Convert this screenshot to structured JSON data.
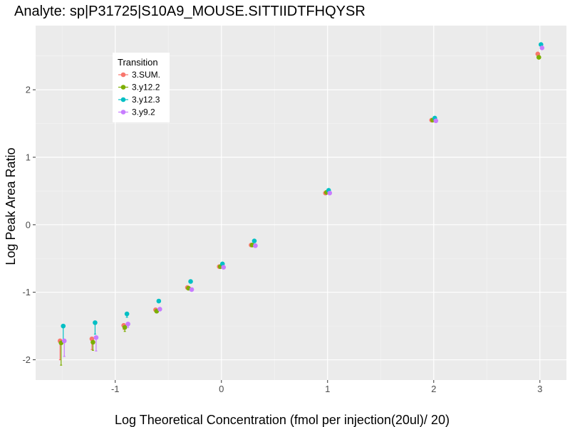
{
  "chart_data": {
    "type": "scatter",
    "title": "Analyte: sp|P31725|S10A9_MOUSE.SITTIIDTFHQYSR",
    "xlabel": "Log Theoretical Concentration (fmol per injection(20ul)/ 20)",
    "ylabel": "Log Peak Area Ratio",
    "xlim": [
      -1.75,
      3.25
    ],
    "ylim": [
      -2.3,
      2.95
    ],
    "x_ticks": [
      -1,
      0,
      1,
      2,
      3
    ],
    "x_tick_labels": [
      "-1",
      "0",
      "1",
      "2",
      "3"
    ],
    "y_ticks": [
      -2,
      -1,
      0,
      1,
      2
    ],
    "y_tick_labels": [
      "-2",
      "-1",
      "0",
      "1",
      "2"
    ],
    "grid": true,
    "legend": {
      "title": "Transition",
      "placement": "top-left"
    },
    "series": [
      {
        "name": "3.SUM.",
        "color": "#F8766D",
        "points": [
          {
            "x": -1.52,
            "y": -1.72,
            "err_low": -2.0,
            "err_high": -1.72
          },
          {
            "x": -1.22,
            "y": -1.69,
            "err_low": -1.85,
            "err_high": -1.69
          },
          {
            "x": -0.92,
            "y": -1.49,
            "err_low": -1.55,
            "err_high": -1.49
          },
          {
            "x": -0.62,
            "y": -1.26
          },
          {
            "x": -0.32,
            "y": -0.93
          },
          {
            "x": -0.02,
            "y": -0.62
          },
          {
            "x": 0.28,
            "y": -0.3
          },
          {
            "x": 0.98,
            "y": 0.47
          },
          {
            "x": 1.98,
            "y": 1.55
          },
          {
            "x": 2.98,
            "y": 2.53
          }
        ]
      },
      {
        "name": "3.y12.2",
        "color": "#7CAE00",
        "points": [
          {
            "x": -1.51,
            "y": -1.75,
            "err_low": -2.08,
            "err_high": -1.75
          },
          {
            "x": -1.21,
            "y": -1.74,
            "err_low": -1.86,
            "err_high": -1.74
          },
          {
            "x": -0.91,
            "y": -1.52,
            "err_low": -1.58,
            "err_high": -1.52
          },
          {
            "x": -0.61,
            "y": -1.28
          },
          {
            "x": -0.31,
            "y": -0.94
          },
          {
            "x": -0.01,
            "y": -0.62
          },
          {
            "x": 0.29,
            "y": -0.3
          },
          {
            "x": 0.99,
            "y": 0.48
          },
          {
            "x": 1.99,
            "y": 1.55
          },
          {
            "x": 2.99,
            "y": 2.48
          }
        ]
      },
      {
        "name": "3.y12.3",
        "color": "#00BFC4",
        "points": [
          {
            "x": -1.49,
            "y": -1.5,
            "err_low": -1.72,
            "err_high": -1.5
          },
          {
            "x": -1.19,
            "y": -1.45,
            "err_low": -1.62,
            "err_high": -1.45
          },
          {
            "x": -0.89,
            "y": -1.32,
            "err_low": -1.37,
            "err_high": -1.32
          },
          {
            "x": -0.59,
            "y": -1.13
          },
          {
            "x": -0.29,
            "y": -0.84
          },
          {
            "x": 0.01,
            "y": -0.58
          },
          {
            "x": 0.31,
            "y": -0.24
          },
          {
            "x": 1.01,
            "y": 0.51
          },
          {
            "x": 2.01,
            "y": 1.58
          },
          {
            "x": 3.01,
            "y": 2.67
          }
        ]
      },
      {
        "name": "3.y9.2",
        "color": "#C77CFF",
        "points": [
          {
            "x": -1.48,
            "y": -1.72,
            "err_low": -1.95,
            "err_high": -1.72
          },
          {
            "x": -1.18,
            "y": -1.67,
            "err_low": -1.87,
            "err_high": -1.67
          },
          {
            "x": -0.88,
            "y": -1.47,
            "err_low": -1.52,
            "err_high": -1.47
          },
          {
            "x": -0.58,
            "y": -1.25
          },
          {
            "x": -0.28,
            "y": -0.96
          },
          {
            "x": 0.02,
            "y": -0.63
          },
          {
            "x": 0.32,
            "y": -0.31
          },
          {
            "x": 1.02,
            "y": 0.47
          },
          {
            "x": 2.02,
            "y": 1.54
          },
          {
            "x": 3.02,
            "y": 2.62
          }
        ]
      }
    ]
  }
}
